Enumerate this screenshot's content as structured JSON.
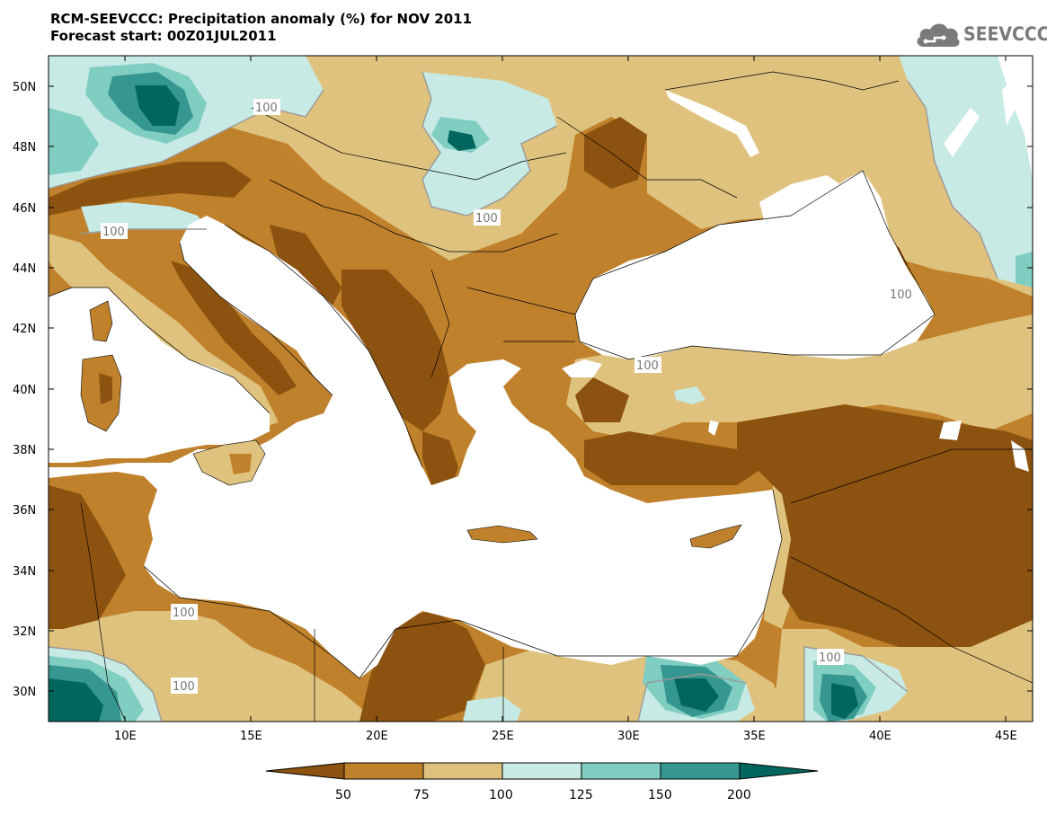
{
  "header": {
    "title_line1": "RCM-SEEVCCC: Precipitation anomaly (%) for NOV 2011",
    "title_line2": "Forecast start: 00Z01JUL2011",
    "logo_text": "SEEVCCC"
  },
  "map": {
    "lat_labels": [
      "50N",
      "48N",
      "46N",
      "44N",
      "42N",
      "40N",
      "38N",
      "36N",
      "34N",
      "32N",
      "30N"
    ],
    "lon_labels": [
      "10E",
      "15E",
      "20E",
      "25E",
      "30E",
      "35E",
      "40E",
      "45E"
    ],
    "contour_labels": [
      "100",
      "100",
      "100",
      "100",
      "100",
      "100",
      "100",
      "100",
      "100",
      "100",
      "100",
      "100",
      "100"
    ],
    "colors": {
      "lt50": "#8c520f",
      "c50_75": "#bf812c",
      "c75_100": "#dfc27d",
      "c100_125": "#c7eae5",
      "c125_150": "#80cdc1",
      "c150_200": "#35978f",
      "gt200": "#01665e",
      "sea": "#ffffff"
    }
  },
  "colorbar": {
    "tick_labels": [
      "50",
      "75",
      "100",
      "125",
      "150",
      "200"
    ]
  }
}
